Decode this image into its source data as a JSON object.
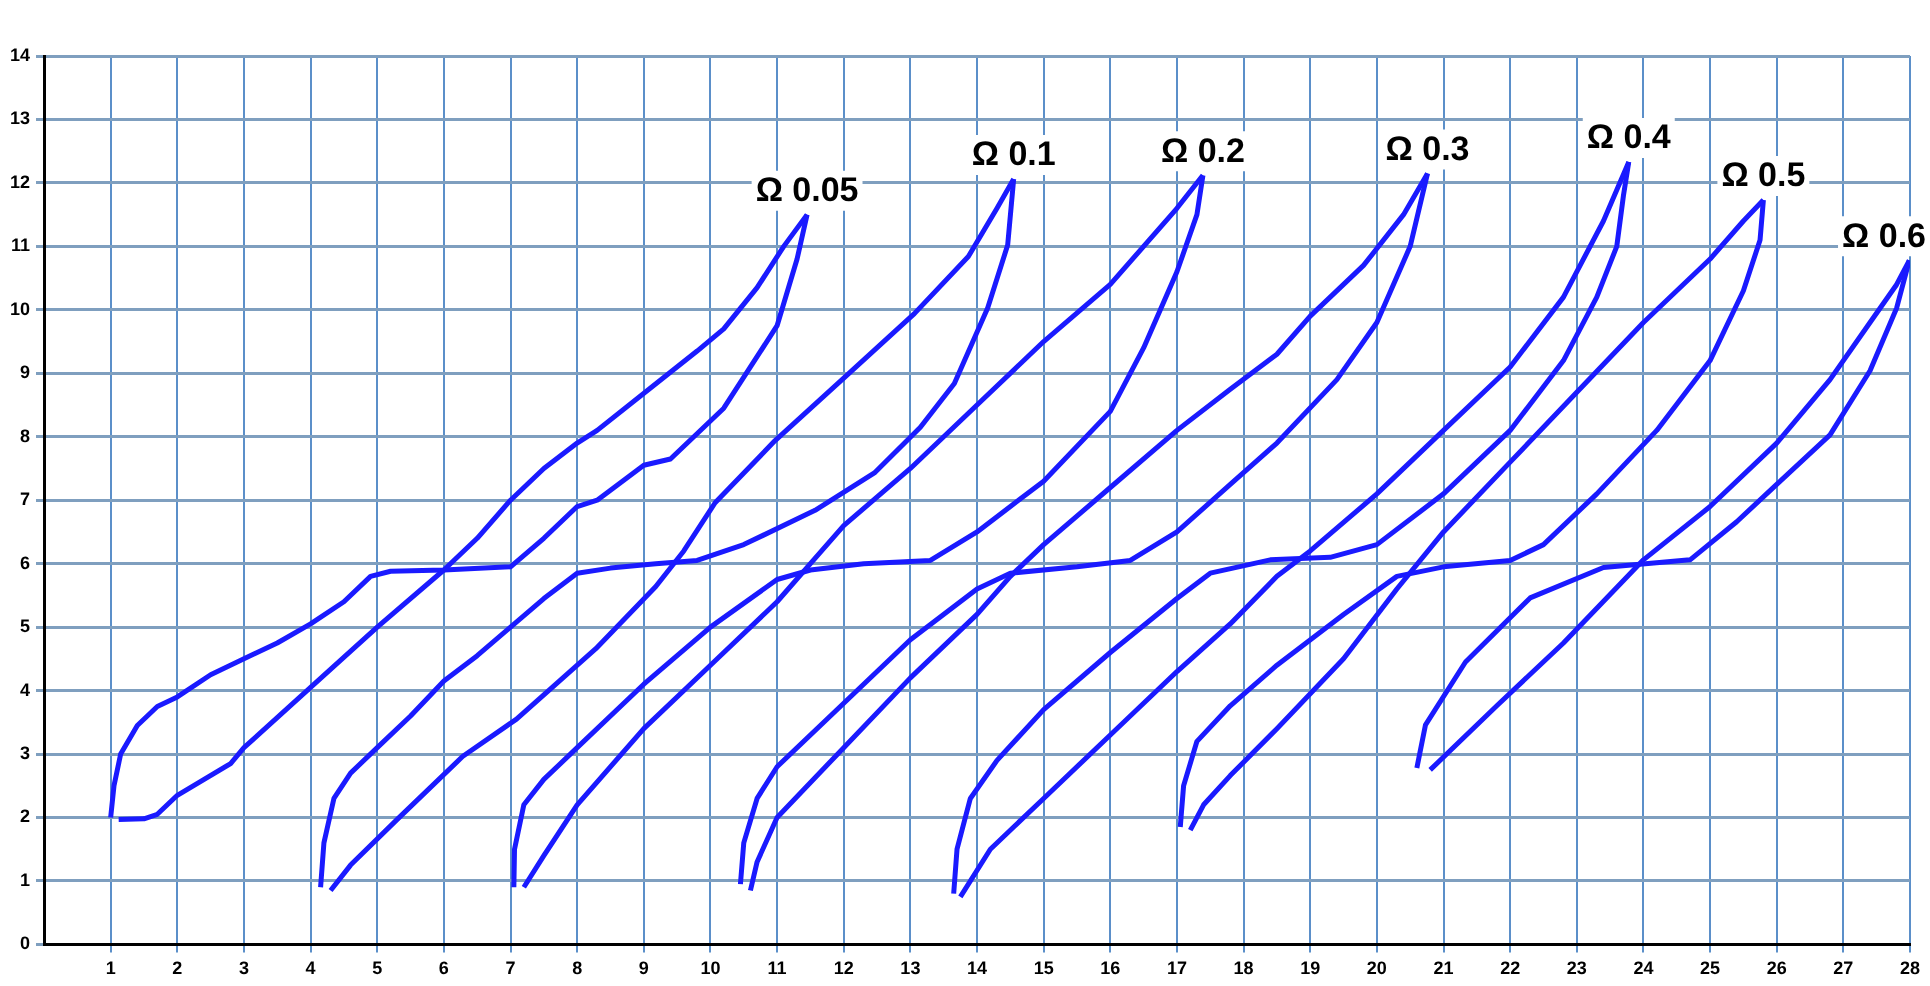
{
  "chart_data": {
    "type": "line",
    "xlim": [
      0,
      28
    ],
    "ylim": [
      0,
      14
    ],
    "xticks": [
      1,
      2,
      3,
      4,
      5,
      6,
      7,
      8,
      9,
      10,
      11,
      12,
      13,
      14,
      15,
      16,
      17,
      18,
      19,
      20,
      21,
      22,
      23,
      24,
      25,
      26,
      27,
      28
    ],
    "yticks": [
      0,
      1,
      2,
      3,
      4,
      5,
      6,
      7,
      8,
      9,
      10,
      11,
      12,
      13,
      14
    ],
    "grid": true,
    "legend": false,
    "marker": "none",
    "line_style": "solid",
    "series": [
      {
        "name": "Ω 0.05",
        "color": "#1a1aff",
        "x": [
          1,
          1.05,
          1.15,
          1.4,
          1.7,
          2,
          2.5,
          3,
          3.5,
          4,
          4.5,
          4.9,
          5.2,
          6,
          7,
          7.5,
          8,
          8.3,
          9,
          9.4,
          10.2,
          11,
          11.3,
          11.45
        ],
        "values": [
          2,
          2.5,
          3,
          3.45,
          3.75,
          3.9,
          4.25,
          4.5,
          4.75,
          5.05,
          5.4,
          5.8,
          5.88,
          5.9,
          5.95,
          6.4,
          6.9,
          7,
          7.55,
          7.65,
          8.45,
          9.75,
          10.8,
          11.5
        ]
      },
      {
        "color": "#1a1aff",
        "x": [
          1.12,
          1.5,
          1.7,
          2,
          2.8,
          3,
          4,
          5,
          6,
          6.5,
          7,
          7.5,
          8,
          8.3,
          9.2,
          9.8,
          10.2,
          10.7,
          11.1,
          11.45
        ],
        "values": [
          1.97,
          1.98,
          2.05,
          2.35,
          2.85,
          3.1,
          4.05,
          5,
          5.9,
          6.4,
          7,
          7.5,
          7.9,
          8.1,
          8.85,
          9.35,
          9.7,
          10.35,
          11,
          11.5
        ]
      },
      {
        "name": "Ω 0.1",
        "color": "#1a1aff",
        "x": [
          4.15,
          4.2,
          4.35,
          4.6,
          5,
          5.5,
          6,
          6.5,
          7,
          7.5,
          8,
          8.5,
          9.18,
          9.8,
          10.5,
          11.57,
          12.46,
          13.15,
          13.66,
          14.16,
          14.46,
          14.55
        ],
        "values": [
          0.9,
          1.6,
          2.3,
          2.7,
          3.1,
          3.6,
          4.15,
          4.55,
          5,
          5.45,
          5.85,
          5.93,
          6,
          6.05,
          6.3,
          6.84,
          7.43,
          8.15,
          8.84,
          10.03,
          11.02,
          12.06
        ]
      },
      {
        "color": "#1a1aff",
        "x": [
          4.3,
          4.6,
          5.3,
          6.28,
          7.09,
          8.28,
          9.18,
          9.6,
          10.07,
          10.97,
          12.07,
          13.06,
          13.87,
          14.3,
          14.55
        ],
        "values": [
          0.85,
          1.25,
          1.97,
          2.96,
          3.55,
          4.66,
          5.64,
          6.2,
          6.96,
          7.94,
          8.99,
          9.94,
          10.84,
          11.6,
          12.06
        ]
      },
      {
        "name": "Ω 0.2",
        "color": "#1a1aff",
        "x": [
          7.05,
          7.06,
          7.2,
          7.5,
          8,
          9,
          10,
          11,
          11.5,
          12.3,
          13.3,
          14,
          15,
          16,
          16.5,
          17,
          17.3,
          17.39
        ],
        "values": [
          0.9,
          1.5,
          2.2,
          2.6,
          3.1,
          4.1,
          5,
          5.75,
          5.9,
          6,
          6.05,
          6.5,
          7.3,
          8.4,
          9.4,
          10.6,
          11.5,
          12.12
        ]
      },
      {
        "color": "#1a1aff",
        "x": [
          7.2,
          7.5,
          8,
          9,
          10,
          11,
          11.5,
          12,
          13,
          14,
          15,
          16,
          17,
          17.39
        ],
        "values": [
          0.9,
          1.4,
          2.2,
          3.4,
          4.4,
          5.4,
          6,
          6.6,
          7.5,
          8.5,
          9.5,
          10.4,
          11.6,
          12.12
        ]
      },
      {
        "name": "Ω 0.3",
        "color": "#1a1aff",
        "x": [
          10.45,
          10.5,
          10.7,
          11,
          12,
          13,
          14,
          14.5,
          15.5,
          16.3,
          17,
          17.8,
          18.5,
          19.4,
          20,
          20.5,
          20.76
        ],
        "values": [
          0.95,
          1.6,
          2.3,
          2.8,
          3.8,
          4.8,
          5.6,
          5.85,
          5.95,
          6.05,
          6.5,
          7.25,
          7.9,
          8.9,
          9.8,
          11,
          12.15
        ]
      },
      {
        "color": "#1a1aff",
        "x": [
          10.6,
          10.7,
          11,
          12,
          13,
          14,
          14.5,
          15,
          16,
          17,
          17.8,
          18.5,
          19,
          19.8,
          20.4,
          20.76
        ],
        "values": [
          0.85,
          1.3,
          2,
          3.1,
          4.2,
          5.2,
          5.8,
          6.3,
          7.2,
          8.1,
          8.75,
          9.3,
          9.9,
          10.7,
          11.5,
          12.15
        ]
      },
      {
        "name": "Ω 0.4",
        "color": "#1a1aff",
        "x": [
          13.65,
          13.7,
          13.9,
          14.3,
          15,
          16,
          17,
          17.5,
          18.4,
          19.3,
          20,
          21,
          22,
          22.8,
          23.3,
          23.6,
          23.7,
          23.78
        ],
        "values": [
          0.8,
          1.5,
          2.3,
          2.9,
          3.7,
          4.6,
          5.45,
          5.85,
          6.06,
          6.1,
          6.3,
          7.1,
          8.1,
          9.2,
          10.2,
          11,
          11.8,
          12.33
        ]
      },
      {
        "color": "#1a1aff",
        "x": [
          13.75,
          14.2,
          15,
          16,
          17,
          17.8,
          18.5,
          19,
          20,
          21,
          22,
          22.8,
          23.4,
          23.78
        ],
        "values": [
          0.75,
          1.5,
          2.3,
          3.3,
          4.3,
          5.05,
          5.8,
          6.2,
          7.1,
          8.1,
          9.1,
          10.2,
          11.4,
          12.33
        ]
      },
      {
        "name": "Ω 0.5",
        "color": "#1a1aff",
        "x": [
          17.05,
          17.1,
          17.3,
          17.8,
          18.5,
          19.5,
          20.3,
          21,
          22,
          22.5,
          23.3,
          24.2,
          25,
          25.5,
          25.75,
          25.8
        ],
        "values": [
          1.85,
          2.5,
          3.2,
          3.76,
          4.4,
          5.2,
          5.8,
          5.95,
          6.05,
          6.3,
          7.1,
          8.1,
          9.2,
          10.3,
          11.1,
          11.73
        ]
      },
      {
        "color": "#1a1aff",
        "x": [
          17.2,
          17.4,
          17.8,
          18.5,
          19.5,
          20.3,
          21,
          22,
          23,
          24,
          25,
          25.5,
          25.8
        ],
        "values": [
          1.8,
          2.2,
          2.66,
          3.4,
          4.5,
          5.6,
          6.5,
          7.6,
          8.7,
          9.8,
          10.8,
          11.4,
          11.73
        ]
      },
      {
        "name": "Ω 0.6",
        "color": "#1a1aff",
        "x": [
          20.6,
          20.73,
          21.33,
          22.3,
          23.4,
          24.7,
          25.4,
          26,
          26.8,
          27.4,
          27.8,
          27.99
        ],
        "values": [
          2.78,
          3.46,
          4.45,
          5.46,
          5.94,
          6.06,
          6.66,
          7.25,
          8.03,
          9.04,
          10.03,
          10.78
        ]
      },
      {
        "color": "#1a1aff",
        "x": [
          20.8,
          21.8,
          22.8,
          24,
          25,
          26,
          26.8,
          27.4,
          27.8,
          27.99
        ],
        "values": [
          2.75,
          3.76,
          4.75,
          6.06,
          6.9,
          7.9,
          8.9,
          9.8,
          10.4,
          10.78
        ]
      }
    ]
  }
}
